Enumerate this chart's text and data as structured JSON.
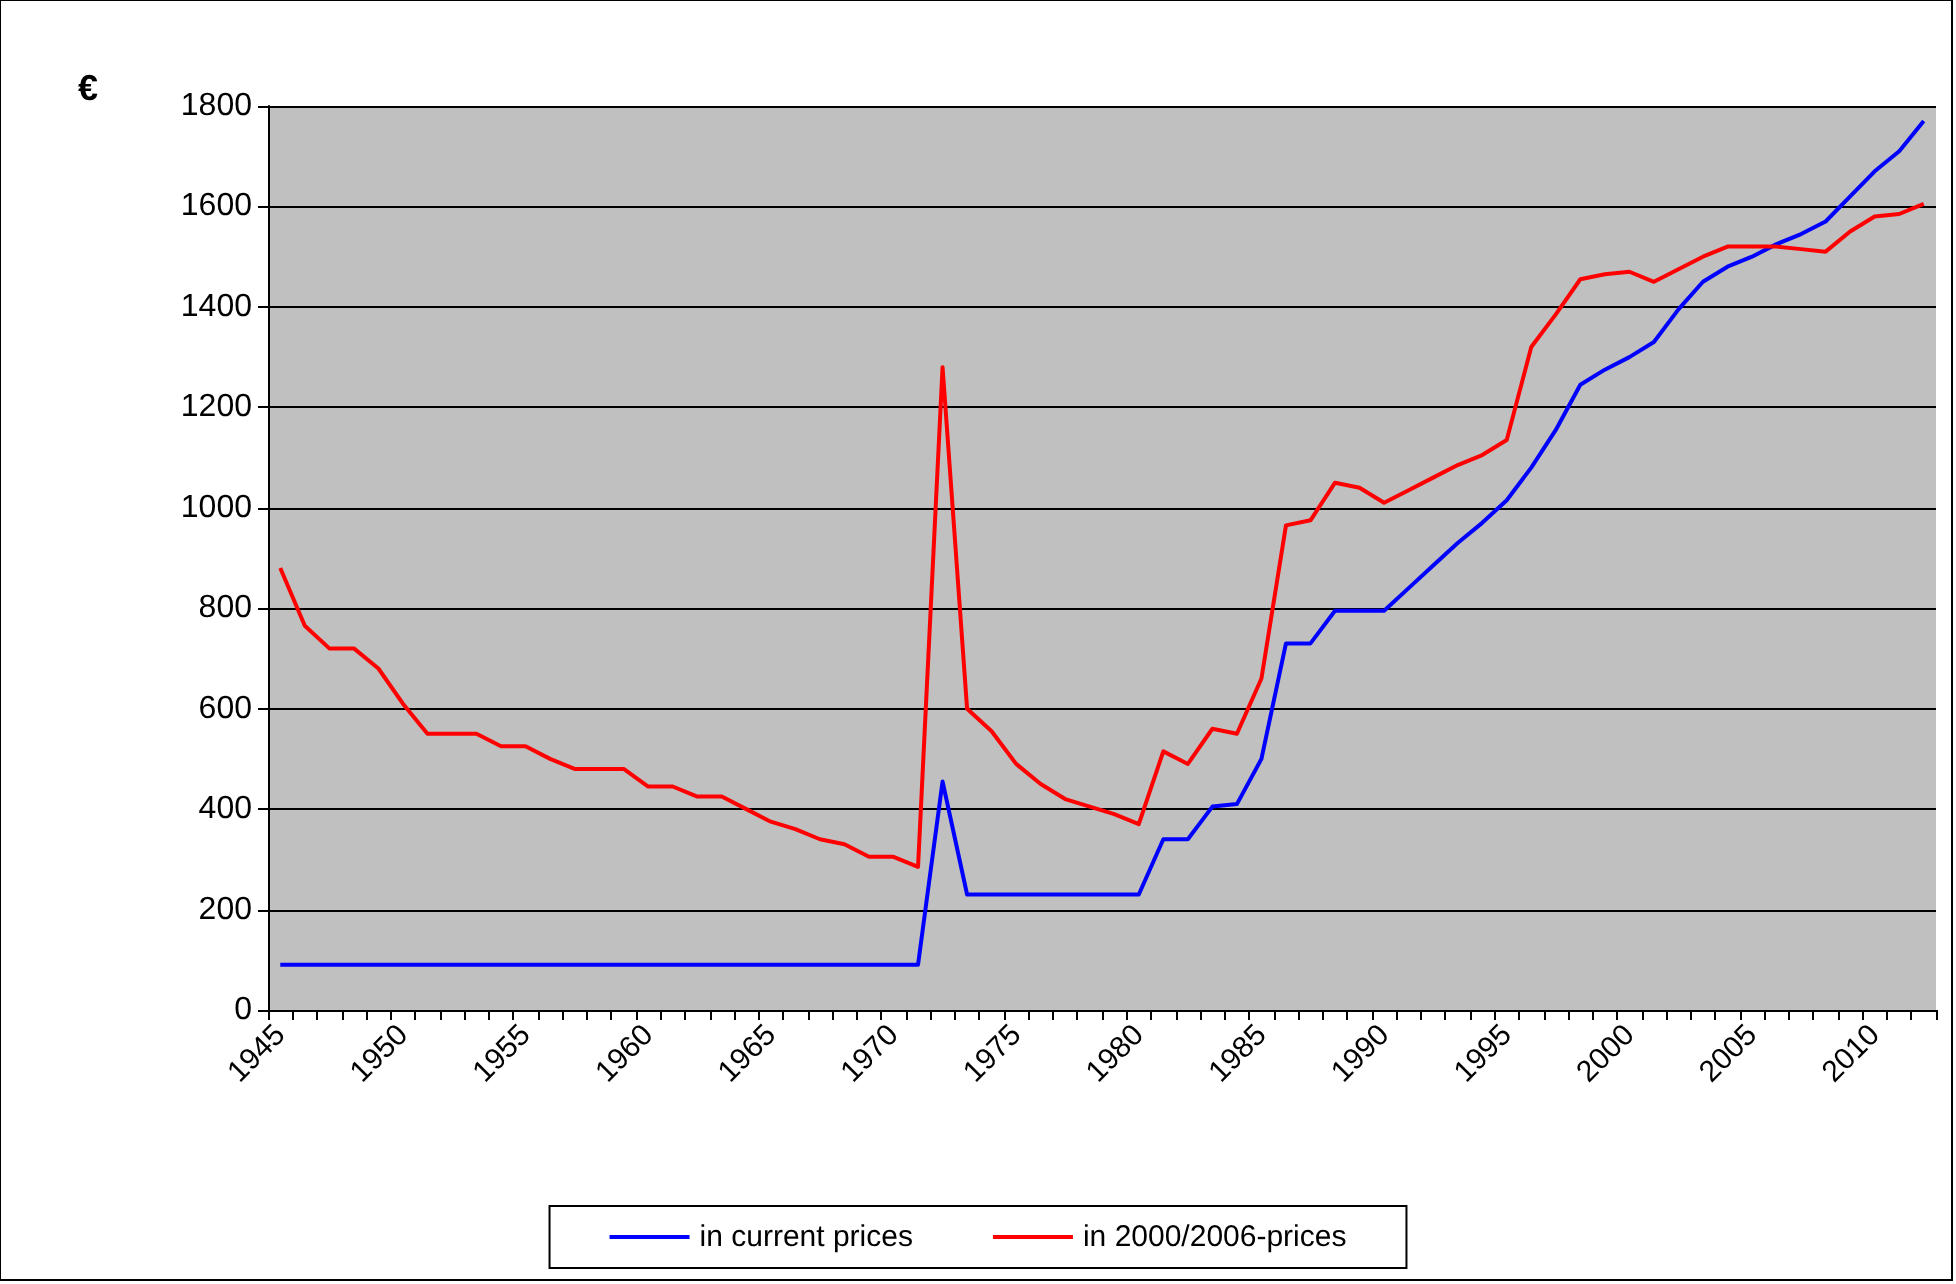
{
  "chart_data": {
    "type": "line",
    "ylabel": "€",
    "categories": [
      "1945",
      null,
      null,
      null,
      null,
      "1950",
      null,
      null,
      null,
      null,
      "1955",
      null,
      null,
      null,
      null,
      "1960",
      null,
      null,
      null,
      null,
      "1965",
      null,
      null,
      null,
      null,
      "1970",
      null,
      null,
      null,
      null,
      "1975",
      null,
      null,
      null,
      null,
      "1980",
      null,
      null,
      null,
      null,
      "1985",
      null,
      null,
      null,
      null,
      "1990",
      null,
      null,
      null,
      null,
      "1995",
      null,
      null,
      null,
      null,
      "2000",
      null,
      null,
      null,
      null,
      "2005",
      null,
      null,
      null,
      null,
      "2010",
      null,
      null
    ],
    "series": [
      {
        "name": "in current prices",
        "color": "#0000ff",
        "values": [
          90,
          90,
          90,
          90,
          90,
          90,
          90,
          90,
          90,
          90,
          90,
          90,
          90,
          90,
          90,
          90,
          90,
          90,
          90,
          90,
          90,
          90,
          90,
          90,
          90,
          90,
          90,
          455,
          230,
          230,
          230,
          230,
          230,
          230,
          230,
          230,
          340,
          340,
          405,
          410,
          500,
          730,
          730,
          795,
          795,
          795,
          840,
          885,
          930,
          970,
          1015,
          1080,
          1155,
          1245,
          1275,
          1300,
          1330,
          1395,
          1450,
          1480,
          1500,
          1525,
          1545,
          1570,
          1620,
          1670,
          1710,
          1770
        ]
      },
      {
        "name": "in 2000/2006-prices",
        "color": "#ff0000",
        "values": [
          880,
          765,
          720,
          720,
          680,
          610,
          550,
          550,
          550,
          525,
          525,
          500,
          480,
          480,
          480,
          445,
          445,
          425,
          425,
          400,
          375,
          360,
          340,
          330,
          305,
          305,
          285,
          1280,
          600,
          555,
          490,
          450,
          420,
          405,
          390,
          370,
          515,
          490,
          560,
          550,
          660,
          965,
          975,
          1050,
          1040,
          1010,
          1035,
          1060,
          1085,
          1105,
          1135,
          1320,
          1385,
          1455,
          1465,
          1470,
          1450,
          1475,
          1500,
          1520,
          1520,
          1520,
          1515,
          1510,
          1550,
          1580,
          1585,
          1605
        ]
      }
    ],
    "ylim": [
      0,
      1800
    ],
    "yticks": [
      0,
      200,
      400,
      600,
      800,
      1000,
      1200,
      1400,
      1600,
      1800
    ],
    "grid": "y",
    "legend": "bottom",
    "marker": "none",
    "line_style": "solid"
  }
}
